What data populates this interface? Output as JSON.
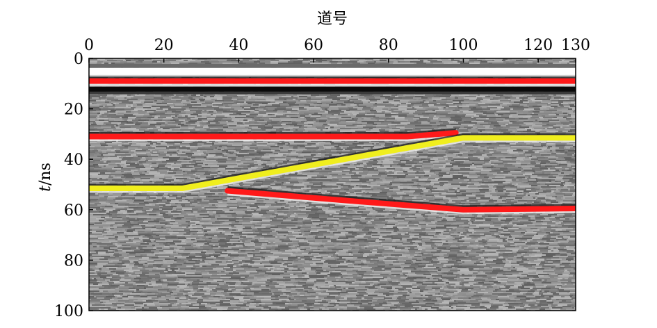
{
  "chart_data": {
    "type": "line",
    "xlabel": "道号",
    "ylabel_var": "t",
    "ylabel_unit": "/ns",
    "xlim": [
      0,
      130
    ],
    "ylim": [
      0,
      100
    ],
    "y_inverted": true,
    "x_axis_position": "top",
    "x_ticks": [
      "0",
      "20",
      "40",
      "60",
      "80",
      "100",
      "120",
      "130"
    ],
    "y_ticks": [
      "0",
      "20",
      "40",
      "60",
      "80",
      "100"
    ],
    "background": "grayscale radar profile",
    "series": [
      {
        "color": "#ff1a1a",
        "x": [
          0,
          130
        ],
        "y": [
          9,
          9
        ]
      },
      {
        "color": "#ff1a1a",
        "x": [
          0,
          85,
          98
        ],
        "y": [
          31,
          31,
          29.5
        ]
      },
      {
        "color": "#f0ee1e",
        "x": [
          0,
          25,
          100,
          130
        ],
        "y": [
          51.5,
          51.5,
          31.5,
          31.5
        ]
      },
      {
        "color": "#ff1a1a",
        "x": [
          37,
          70,
          100,
          130
        ],
        "y": [
          52.5,
          56.5,
          60,
          59.5
        ]
      }
    ]
  }
}
